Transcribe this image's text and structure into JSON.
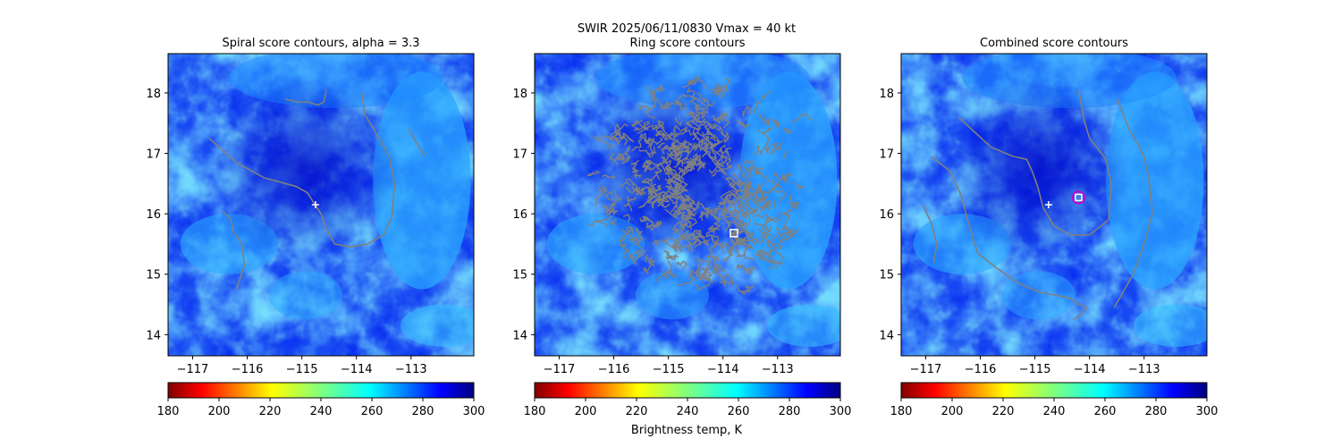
{
  "figure": {
    "suptitle_line1": "SWIR  2025/06/11/0830    Vmax = 40 kt",
    "colorbar_label": "Brightness temp, K"
  },
  "colors": {
    "contour": "#808080",
    "center_marker": "#ffffff",
    "best_marker_ring": "#c800c8"
  },
  "chart_data": [
    {
      "type": "heatmap",
      "title": "Spiral score contours, alpha =  3.3",
      "xlim": [
        -117.45,
        -111.85
      ],
      "ylim": [
        13.65,
        18.65
      ],
      "xticks": [
        -117,
        -116,
        -115,
        -114,
        -113
      ],
      "yticks": [
        14,
        15,
        16,
        17,
        18
      ],
      "xticklabels": [
        "−117",
        "−116",
        "−115",
        "−114",
        "−113"
      ],
      "yticklabels": [
        "14",
        "15",
        "16",
        "17",
        "18"
      ],
      "colorscale": "jet_reversed",
      "colorbar_range": [
        180,
        300
      ],
      "colorbar_ticks": [
        "180",
        "200",
        "220",
        "240",
        "260",
        "280",
        "300"
      ],
      "markers": [
        {
          "kind": "plus",
          "lon": -114.75,
          "lat": 16.15
        }
      ],
      "contours": [
        [
          [
            -116.7,
            17.25
          ],
          [
            -116.2,
            16.85
          ],
          [
            -115.7,
            16.6
          ],
          [
            -115.1,
            16.45
          ],
          [
            -114.9,
            16.35
          ],
          [
            -114.65,
            16.0
          ],
          [
            -114.55,
            15.75
          ],
          [
            -114.4,
            15.5
          ],
          [
            -114.1,
            15.45
          ],
          [
            -113.8,
            15.5
          ],
          [
            -113.5,
            15.65
          ],
          [
            -113.35,
            15.95
          ],
          [
            -113.3,
            16.5
          ],
          [
            -113.4,
            16.95
          ],
          [
            -113.65,
            17.35
          ],
          [
            -113.85,
            17.65
          ],
          [
            -113.9,
            18.0
          ]
        ],
        [
          [
            -116.45,
            16.05
          ],
          [
            -116.3,
            15.9
          ],
          [
            -116.25,
            15.7
          ],
          [
            -116.1,
            15.5
          ],
          [
            -116.05,
            15.15
          ],
          [
            -116.2,
            14.75
          ]
        ],
        [
          [
            -115.3,
            17.9
          ],
          [
            -115.1,
            17.85
          ],
          [
            -114.9,
            17.85
          ],
          [
            -114.7,
            17.8
          ],
          [
            -114.6,
            17.85
          ],
          [
            -114.55,
            18.05
          ]
        ],
        [
          [
            -113.05,
            17.4
          ],
          [
            -112.75,
            16.95
          ]
        ]
      ]
    },
    {
      "type": "heatmap",
      "title": "Ring score contours",
      "xlim": [
        -117.45,
        -111.85
      ],
      "ylim": [
        13.65,
        18.65
      ],
      "xticks": [
        -117,
        -116,
        -115,
        -114,
        -113
      ],
      "yticks": [
        14,
        15,
        16,
        17,
        18
      ],
      "xticklabels": [
        "−117",
        "−116",
        "−115",
        "−114",
        "−113"
      ],
      "yticklabels": [
        "14",
        "15",
        "16",
        "17",
        "18"
      ],
      "colorscale": "jet_reversed",
      "colorbar_range": [
        180,
        300
      ],
      "colorbar_ticks": [
        "180",
        "200",
        "220",
        "240",
        "260",
        "280",
        "300"
      ],
      "markers": [
        {
          "kind": "square",
          "lon": -113.8,
          "lat": 15.68
        }
      ],
      "ring_region": {
        "lon_range": [
          -116.5,
          -112.7
        ],
        "lat_range": [
          14.8,
          18.3
        ]
      }
    },
    {
      "type": "heatmap",
      "title": "Combined score contours",
      "xlim": [
        -117.45,
        -111.85
      ],
      "ylim": [
        13.65,
        18.65
      ],
      "xticks": [
        -117,
        -116,
        -115,
        -114,
        -113
      ],
      "yticks": [
        14,
        15,
        16,
        17,
        18
      ],
      "xticklabels": [
        "−117",
        "−116",
        "−115",
        "−114",
        "−113"
      ],
      "yticklabels": [
        "14",
        "15",
        "16",
        "17",
        "18"
      ],
      "colorscale": "jet_reversed",
      "colorbar_range": [
        180,
        300
      ],
      "colorbar_ticks": [
        "180",
        "200",
        "220",
        "240",
        "260",
        "280",
        "300"
      ],
      "markers": [
        {
          "kind": "plus",
          "lon": -114.75,
          "lat": 16.15
        },
        {
          "kind": "square_ring",
          "lon": -114.2,
          "lat": 16.27
        }
      ],
      "contours": [
        [
          [
            -116.4,
            17.6
          ],
          [
            -116.1,
            17.35
          ],
          [
            -115.8,
            17.1
          ],
          [
            -115.4,
            16.95
          ],
          [
            -115.15,
            16.9
          ],
          [
            -115.05,
            16.7
          ],
          [
            -114.95,
            16.45
          ],
          [
            -114.85,
            16.1
          ],
          [
            -114.65,
            15.8
          ],
          [
            -114.35,
            15.65
          ],
          [
            -114.0,
            15.65
          ],
          [
            -113.65,
            15.9
          ],
          [
            -113.6,
            16.5
          ],
          [
            -113.7,
            16.9
          ],
          [
            -114.0,
            17.25
          ],
          [
            -114.1,
            17.55
          ],
          [
            -114.2,
            18.05
          ]
        ],
        [
          [
            -116.9,
            16.95
          ],
          [
            -116.55,
            16.7
          ],
          [
            -116.35,
            16.3
          ],
          [
            -116.2,
            15.8
          ],
          [
            -116.05,
            15.35
          ],
          [
            -115.7,
            15.1
          ],
          [
            -115.3,
            14.85
          ],
          [
            -114.9,
            14.7
          ],
          [
            -114.6,
            14.65
          ],
          [
            -114.35,
            14.6
          ],
          [
            -114.2,
            14.5
          ],
          [
            -114.05,
            14.45
          ],
          [
            -114.2,
            14.3
          ],
          [
            -114.3,
            14.25
          ]
        ],
        [
          [
            -113.5,
            17.9
          ],
          [
            -113.4,
            17.7
          ],
          [
            -113.3,
            17.45
          ],
          [
            -113.15,
            17.2
          ],
          [
            -113.0,
            16.95
          ],
          [
            -112.9,
            16.5
          ],
          [
            -112.85,
            16.0
          ],
          [
            -113.0,
            15.5
          ],
          [
            -113.2,
            15.0
          ],
          [
            -113.45,
            14.6
          ],
          [
            -113.55,
            14.45
          ]
        ],
        [
          [
            -117.05,
            16.15
          ],
          [
            -116.9,
            15.85
          ],
          [
            -116.8,
            15.5
          ],
          [
            -116.85,
            15.2
          ]
        ]
      ]
    }
  ]
}
